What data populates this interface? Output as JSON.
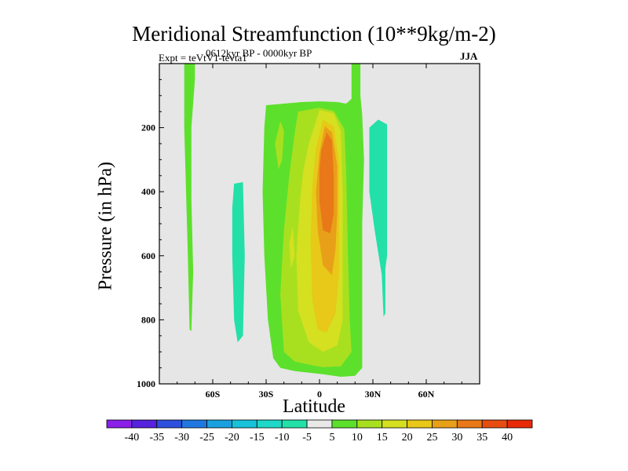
{
  "chart_data": {
    "type": "contour",
    "title": "Meridional Streamfunction (10**9kg/m-2)",
    "subtitle": "0612kyr BP - 0000kyr BP",
    "experiment": "Expt = teVtV1-tevta1",
    "season": "JJA",
    "xlabel": "Latitude",
    "ylabel": "Pressure (in hPa)",
    "xlim": [
      -90,
      90
    ],
    "ylim": [
      1000,
      0
    ],
    "x_ticks": [
      {
        "value": -60,
        "label": "60S"
      },
      {
        "value": -30,
        "label": "30S"
      },
      {
        "value": 0,
        "label": "0"
      },
      {
        "value": 30,
        "label": "30N"
      },
      {
        "value": 60,
        "label": "60N"
      }
    ],
    "y_ticks": [
      {
        "value": 200,
        "label": "200"
      },
      {
        "value": 400,
        "label": "400"
      },
      {
        "value": 600,
        "label": "600"
      },
      {
        "value": 800,
        "label": "800"
      },
      {
        "value": 1000,
        "label": "1000"
      }
    ],
    "colorbar": {
      "labels": [
        "-40",
        "-35",
        "-30",
        "-25",
        "-20",
        "-15",
        "-10",
        "-5",
        "5",
        "10",
        "15",
        "20",
        "25",
        "30",
        "35",
        "40"
      ],
      "colors": [
        "#8a1fe8",
        "#5522dd",
        "#2d4fdd",
        "#1f78e0",
        "#1aa0de",
        "#18c2d8",
        "#20d8c8",
        "#22e0a8",
        "#e8e8e8",
        "#5de02c",
        "#a8e020",
        "#d4e020",
        "#e8c818",
        "#e8a018",
        "#e87818",
        "#e84d10",
        "#e82a08"
      ]
    },
    "regions": [
      {
        "level": "5",
        "color": "#5de02c",
        "polygon": [
          [
            -76,
            0
          ],
          [
            -70,
            0
          ],
          [
            -70,
            50
          ],
          [
            -72,
            200
          ],
          [
            -72,
            420
          ],
          [
            -71,
            650
          ],
          [
            -72,
            835
          ],
          [
            -73,
            830
          ],
          [
            -74,
            600
          ],
          [
            -75,
            400
          ],
          [
            -76,
            200
          ]
        ]
      },
      {
        "level": "-5",
        "color": "#22e0a8",
        "polygon": [
          [
            -48,
            375
          ],
          [
            -43,
            370
          ],
          [
            -42,
            600
          ],
          [
            -43,
            850
          ],
          [
            -46,
            870
          ],
          [
            -48,
            800
          ],
          [
            -49,
            600
          ],
          [
            -49,
            450
          ]
        ]
      },
      {
        "level": "5",
        "color": "#5de02c",
        "polygon": [
          [
            -30,
            130
          ],
          [
            -20,
            125
          ],
          [
            -10,
            120
          ],
          [
            0,
            118
          ],
          [
            10,
            120
          ],
          [
            15,
            125
          ],
          [
            18,
            110
          ],
          [
            18,
            0
          ],
          [
            23,
            0
          ],
          [
            23,
            100
          ],
          [
            24,
            160
          ],
          [
            25,
            300
          ],
          [
            24,
            500
          ],
          [
            24,
            800
          ],
          [
            24,
            950
          ],
          [
            20,
            975
          ],
          [
            12,
            978
          ],
          [
            2,
            970
          ],
          [
            -6,
            965
          ],
          [
            -14,
            960
          ],
          [
            -22,
            950
          ],
          [
            -26,
            920
          ],
          [
            -29,
            800
          ],
          [
            -31,
            600
          ],
          [
            -32,
            400
          ],
          [
            -31,
            200
          ]
        ]
      },
      {
        "level": "-5",
        "color": "#22e0a8",
        "polygon": [
          [
            28,
            200
          ],
          [
            33,
            175
          ],
          [
            38,
            190
          ],
          [
            38,
            600
          ],
          [
            37,
            640
          ],
          [
            37,
            780
          ],
          [
            36,
            790
          ],
          [
            35,
            660
          ],
          [
            31,
            520
          ],
          [
            28,
            400
          ]
        ]
      },
      {
        "level": "10",
        "color": "#a8e020",
        "polygon": [
          [
            -25,
            250
          ],
          [
            -22,
            180
          ],
          [
            -20,
            210
          ],
          [
            -21,
            300
          ],
          [
            -23,
            330
          ]
        ]
      },
      {
        "level": "10",
        "color": "#a8e020",
        "polygon": [
          [
            -12,
            150
          ],
          [
            0,
            138
          ],
          [
            8,
            148
          ],
          [
            14,
            205
          ],
          [
            15,
            340
          ],
          [
            16,
            600
          ],
          [
            17,
            800
          ],
          [
            18,
            900
          ],
          [
            12,
            945
          ],
          [
            2,
            948
          ],
          [
            -6,
            940
          ],
          [
            -14,
            930
          ],
          [
            -20,
            900
          ],
          [
            -22,
            720
          ],
          [
            -20,
            520
          ],
          [
            -17,
            350
          ],
          [
            -14,
            220
          ]
        ]
      },
      {
        "level": "15",
        "color": "#d4e020",
        "polygon": [
          [
            -6,
            250
          ],
          [
            0,
            145
          ],
          [
            8,
            155
          ],
          [
            12,
            210
          ],
          [
            13,
            400
          ],
          [
            13,
            600
          ],
          [
            13,
            800
          ],
          [
            10,
            880
          ],
          [
            2,
            900
          ],
          [
            -6,
            870
          ],
          [
            -12,
            770
          ],
          [
            -13,
            600
          ],
          [
            -11,
            430
          ],
          [
            -9,
            330
          ]
        ]
      },
      {
        "level": "20",
        "color": "#e8c818",
        "polygon": [
          [
            -2,
            265
          ],
          [
            2,
            175
          ],
          [
            8,
            195
          ],
          [
            11,
            300
          ],
          [
            11,
            480
          ],
          [
            11,
            650
          ],
          [
            9,
            780
          ],
          [
            4,
            840
          ],
          [
            -1,
            830
          ],
          [
            -4,
            740
          ],
          [
            -5,
            550
          ],
          [
            -4,
            380
          ]
        ]
      },
      {
        "level": "25",
        "color": "#e8a018",
        "polygon": [
          [
            0,
            280
          ],
          [
            3,
            195
          ],
          [
            7,
            215
          ],
          [
            10,
            320
          ],
          [
            10,
            460
          ],
          [
            9,
            580
          ],
          [
            7,
            660
          ],
          [
            2,
            630
          ],
          [
            -1,
            520
          ],
          [
            -2,
            400
          ]
        ]
      },
      {
        "level": "30",
        "color": "#e87818",
        "polygon": [
          [
            1,
            270
          ],
          [
            4,
            215
          ],
          [
            7,
            240
          ],
          [
            8,
            350
          ],
          [
            8,
            470
          ],
          [
            6,
            530
          ],
          [
            2,
            520
          ],
          [
            0,
            430
          ],
          [
            0,
            330
          ]
        ]
      },
      {
        "level": "15",
        "color": "#d4e020",
        "polygon": [
          [
            -17,
            560
          ],
          [
            -15,
            510
          ],
          [
            -14,
            600
          ],
          [
            -16,
            640
          ]
        ]
      }
    ]
  }
}
